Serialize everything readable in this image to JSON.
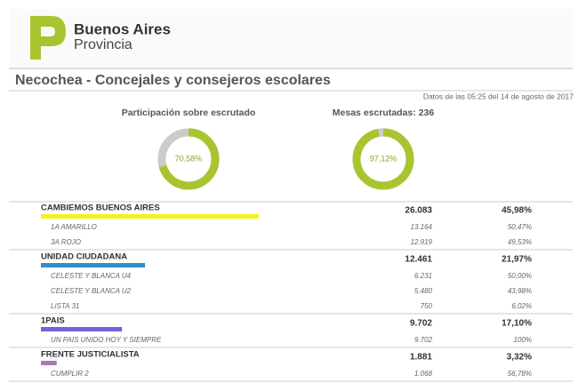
{
  "header": {
    "brand_line1": "Buenos Aires",
    "brand_line2": "Provincia"
  },
  "title": "Necochea - Concejales y consejeros escolares",
  "timestamp": "Datos de las 05:25 del 14 de agosto de 2017",
  "gauges": [
    {
      "label": "Participación sobre escrutado",
      "value": 70.58,
      "value_label": "70,58%"
    },
    {
      "label": "Mesas escrutadas: 236",
      "value": 97.12,
      "value_label": "97,12%"
    }
  ],
  "parties": [
    {
      "name": "CAMBIEMOS BUENOS AIRES",
      "votes": "26.083",
      "percent": 45.98,
      "percent_label": "45,98%",
      "color": "#f2f21a",
      "lists": [
        {
          "name": "1A AMARILLO",
          "votes": "13.164",
          "percent": "50,47%"
        },
        {
          "name": "3A ROJO",
          "votes": "12.919",
          "percent": "49,53%"
        }
      ]
    },
    {
      "name": "UNIDAD CIUDADANA",
      "votes": "12.461",
      "percent": 21.97,
      "percent_label": "21,97%",
      "color": "#2f8fc8",
      "lists": [
        {
          "name": "CELESTE Y BLANCA U4",
          "votes": "6.231",
          "percent": "50,00%"
        },
        {
          "name": "CELESTE Y BLANCA U2",
          "votes": "5.480",
          "percent": "43,98%"
        },
        {
          "name": "LISTA 31",
          "votes": "750",
          "percent": "6,02%"
        }
      ]
    },
    {
      "name": "1PAIS",
      "votes": "9.702",
      "percent": 17.1,
      "percent_label": "17,10%",
      "color": "#7a5fd8",
      "lists": [
        {
          "name": "UN PAIS UNIDO HOY Y SIEMPRE",
          "votes": "9.702",
          "percent": "100%"
        }
      ]
    },
    {
      "name": "FRENTE JUSTICIALISTA",
      "votes": "1.881",
      "percent": 3.32,
      "percent_label": "3,32%",
      "color": "#a57bb5",
      "lists": [
        {
          "name": "CUMPLIR 2",
          "votes": "1.068",
          "percent": "56,78%"
        }
      ]
    }
  ]
}
